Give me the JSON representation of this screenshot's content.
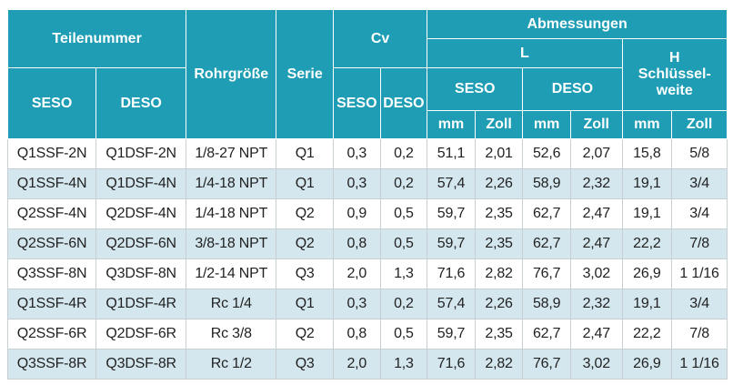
{
  "header": {
    "teilenummer": "Teilenummer",
    "rohrgroesse": "Rohrgröße",
    "serie": "Serie",
    "cv": "Cv",
    "abmessungen": "Abmessungen",
    "l": "L",
    "h": "H",
    "schluesselweite": "Schlüssel-\nweite",
    "seso": "SESO",
    "deso": "DESO",
    "cv_seso": "SESO",
    "cv_deso": "DESO",
    "l_seso": "SESO",
    "l_deso": "DESO",
    "mm": "mm",
    "zoll": "Zoll"
  },
  "rows": [
    {
      "seso": "Q1SSF-2N",
      "deso": "Q1DSF-2N",
      "rohr": "1/8-27 NPT",
      "serie": "Q1",
      "cv_seso": "0,3",
      "cv_deso": "0,2",
      "seso_mm": "51,1",
      "seso_zoll": "2,01",
      "deso_mm": "52,6",
      "deso_zoll": "2,07",
      "h_mm": "15,8",
      "h_zoll": "5/8"
    },
    {
      "seso": "Q1SSF-4N",
      "deso": "Q1DSF-4N",
      "rohr": "1/4-18 NPT",
      "serie": "Q1",
      "cv_seso": "0,3",
      "cv_deso": "0,2",
      "seso_mm": "57,4",
      "seso_zoll": "2,26",
      "deso_mm": "58,9",
      "deso_zoll": "2,32",
      "h_mm": "19,1",
      "h_zoll": "3/4"
    },
    {
      "seso": "Q2SSF-4N",
      "deso": "Q2DSF-4N",
      "rohr": "1/4-18 NPT",
      "serie": "Q2",
      "cv_seso": "0,9",
      "cv_deso": "0,5",
      "seso_mm": "59,7",
      "seso_zoll": "2,35",
      "deso_mm": "62,7",
      "deso_zoll": "2,47",
      "h_mm": "19,1",
      "h_zoll": "3/4"
    },
    {
      "seso": "Q2SSF-6N",
      "deso": "Q2DSF-6N",
      "rohr": "3/8-18 NPT",
      "serie": "Q2",
      "cv_seso": "0,8",
      "cv_deso": "0,5",
      "seso_mm": "59,7",
      "seso_zoll": "2,35",
      "deso_mm": "62,7",
      "deso_zoll": "2,47",
      "h_mm": "22,2",
      "h_zoll": "7/8"
    },
    {
      "seso": "Q3SSF-8N",
      "deso": "Q3DSF-8N",
      "rohr": "1/2-14 NPT",
      "serie": "Q3",
      "cv_seso": "2,0",
      "cv_deso": "1,3",
      "seso_mm": "71,6",
      "seso_zoll": "2,82",
      "deso_mm": "76,7",
      "deso_zoll": "3,02",
      "h_mm": "26,9",
      "h_zoll": "1 1/16"
    },
    {
      "seso": "Q1SSF-4R",
      "deso": "Q1DSF-4R",
      "rohr": "Rc 1/4",
      "serie": "Q1",
      "cv_seso": "0,3",
      "cv_deso": "0,2",
      "seso_mm": "57,4",
      "seso_zoll": "2,26",
      "deso_mm": "58,9",
      "deso_zoll": "2,32",
      "h_mm": "19,1",
      "h_zoll": "3/4"
    },
    {
      "seso": "Q2SSF-6R",
      "deso": "Q2DSF-6R",
      "rohr": "Rc 3/8",
      "serie": "Q2",
      "cv_seso": "0,8",
      "cv_deso": "0,5",
      "seso_mm": "59,7",
      "seso_zoll": "2,35",
      "deso_mm": "62,7",
      "deso_zoll": "2,47",
      "h_mm": "22,2",
      "h_zoll": "7/8"
    },
    {
      "seso": "Q3SSF-8R",
      "deso": "Q3DSF-8R",
      "rohr": "Rc 1/2",
      "serie": "Q3",
      "cv_seso": "2,0",
      "cv_deso": "1,3",
      "seso_mm": "71,6",
      "seso_zoll": "2,82",
      "deso_mm": "76,7",
      "deso_zoll": "3,02",
      "h_mm": "26,9",
      "h_zoll": "1 1/16"
    }
  ],
  "colors": {
    "header_bg": "#1e9db4",
    "row_alt_bg": "#d4e7ee",
    "row_bg": "#ffffff"
  }
}
